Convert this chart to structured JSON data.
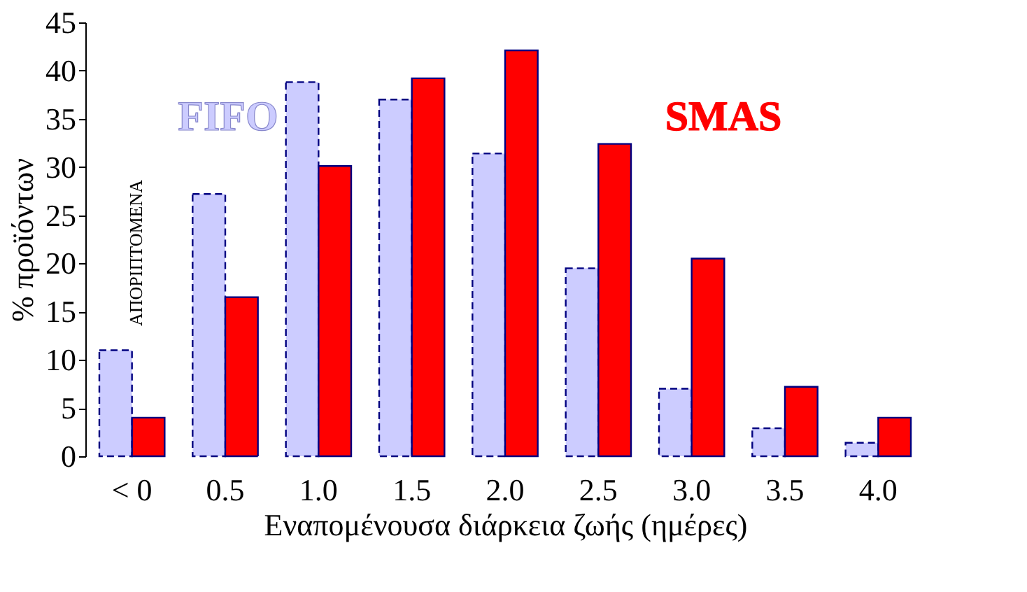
{
  "chart_data": {
    "type": "bar",
    "categories": [
      "< 0",
      "0.5",
      "1.0",
      "1.5",
      "2.0",
      "2.5",
      "3.0",
      "3.5",
      "4.0"
    ],
    "series": [
      {
        "name": "FIFO",
        "color": "#ccccff",
        "line_style": "dashed",
        "values": [
          11,
          27.2,
          38.8,
          37,
          31.4,
          19.5,
          7,
          2.9,
          1.4
        ]
      },
      {
        "name": "SMAS",
        "color": "#ff0000",
        "line_style": "solid",
        "values": [
          4,
          16.5,
          30.1,
          39.2,
          42.1,
          32.4,
          20.5,
          7.2,
          4
        ]
      }
    ],
    "xlabel": "Εναπομένουσα διάρκεια ζωής (ημέρες)",
    "ylabel": "% προϊόντων",
    "ylim": [
      0,
      45
    ],
    "yticks": [
      0,
      5,
      10,
      15,
      20,
      25,
      30,
      35,
      40,
      45
    ],
    "annotations": [
      "ΑΠΟΡΙΠΤΟΜΕΝΑ"
    ],
    "grid": false,
    "legend": false
  }
}
